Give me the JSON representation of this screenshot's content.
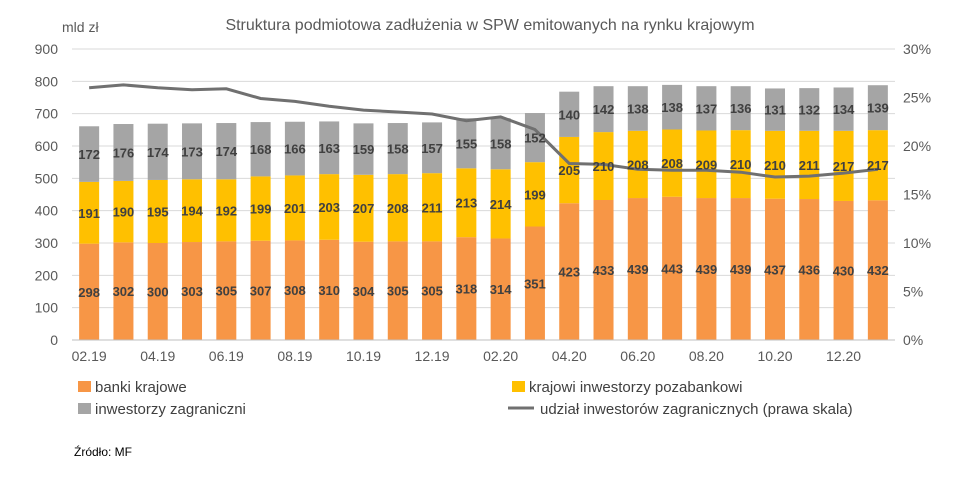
{
  "chart_data": {
    "type": "bar",
    "title": "Struktura podmiotowa zadłużenia w SPW emitowanych na rynku krajowym",
    "ylabel": "mld zł",
    "ylim": [
      0,
      900
    ],
    "yticks": [
      "0",
      "100",
      "200",
      "300",
      "400",
      "500",
      "600",
      "700",
      "800",
      "900"
    ],
    "y2lim": [
      0,
      30
    ],
    "y2ticks": [
      "0%",
      "5%",
      "10%",
      "15%",
      "20%",
      "25%",
      "30%"
    ],
    "categories": [
      "02.19",
      "03.19",
      "04.19",
      "05.19",
      "06.19",
      "07.19",
      "08.19",
      "09.19",
      "10.19",
      "11.19",
      "12.19",
      "01.20",
      "02.20",
      "03.20",
      "04.20",
      "05.20",
      "06.20",
      "07.20",
      "08.20",
      "09.20",
      "10.20",
      "11.20",
      "12.20",
      "01.21"
    ],
    "xtick_labels": [
      "02.19",
      "04.19",
      "06.19",
      "08.19",
      "10.19",
      "12.19",
      "02.20",
      "04.20",
      "06.20",
      "08.20",
      "10.20",
      "12.20"
    ],
    "grid": true,
    "legend_position": "bottom",
    "series": [
      {
        "name": "banki krajowe",
        "kind": "bar",
        "color": "#F79646",
        "values": [
          298,
          302,
          300,
          303,
          305,
          307,
          308,
          310,
          304,
          305,
          305,
          318,
          314,
          351,
          423,
          433,
          439,
          443,
          439,
          439,
          437,
          436,
          430,
          432
        ]
      },
      {
        "name": "krajowi inwestorzy pozabankowi",
        "kind": "bar",
        "color": "#FFC000",
        "values": [
          191,
          190,
          195,
          194,
          192,
          199,
          201,
          203,
          207,
          208,
          211,
          213,
          214,
          199,
          205,
          210,
          208,
          208,
          209,
          210,
          210,
          211,
          217,
          217
        ]
      },
      {
        "name": "inwestorzy zagraniczni",
        "kind": "bar",
        "color": "#A5A5A5",
        "values": [
          172,
          176,
          174,
          173,
          174,
          168,
          166,
          163,
          159,
          158,
          157,
          155,
          158,
          152,
          140,
          142,
          138,
          138,
          137,
          136,
          131,
          132,
          134,
          139
        ]
      },
      {
        "name": "udział inwestorów zagranicznych (prawa skala)",
        "kind": "line",
        "axis": "right",
        "color": "#707070",
        "values": [
          26.0,
          26.3,
          26.0,
          25.8,
          25.9,
          24.9,
          24.6,
          24.1,
          23.7,
          23.5,
          23.3,
          22.6,
          23.0,
          21.7,
          18.2,
          18.1,
          17.6,
          17.5,
          17.5,
          17.3,
          16.8,
          16.9,
          17.2,
          17.6
        ]
      }
    ]
  },
  "source": "Źródło: MF"
}
